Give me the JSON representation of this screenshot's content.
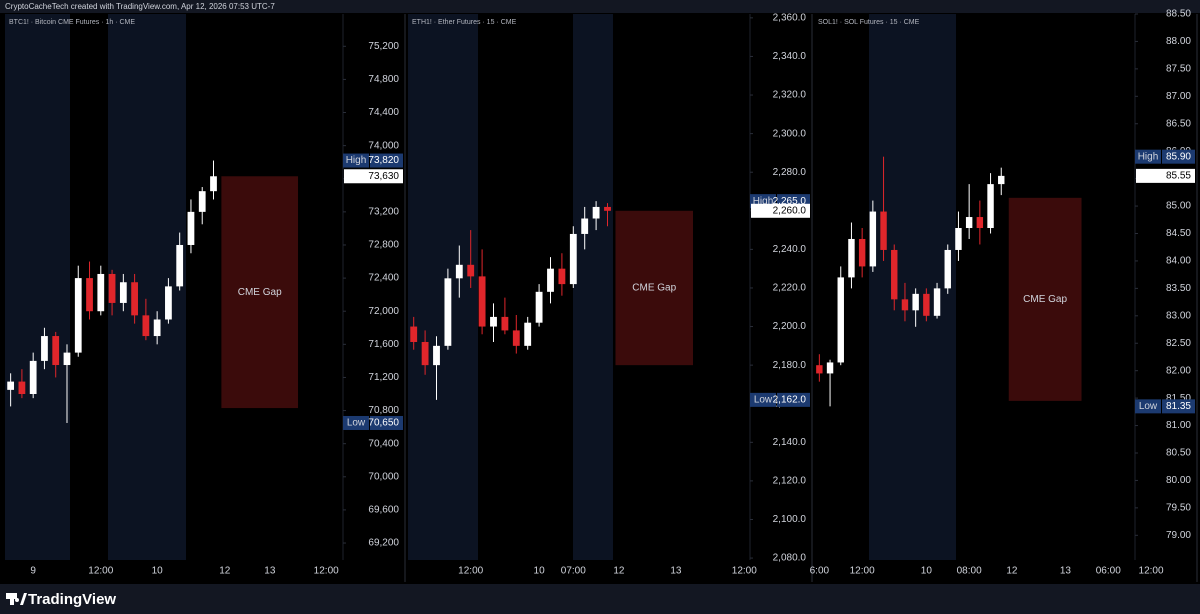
{
  "header": "CryptoCacheTech created with TradingView.com, Apr 12, 2026 07:53 UTC-7",
  "footer": "TradingView",
  "chart_data": [
    {
      "type": "candlestick",
      "title": "BTC1! · Bitcoin CME Futures · 1h · CME",
      "up_color": "#ffffff",
      "down_color": "#e0262b",
      "categories": [
        null,
        null,
        "9",
        null,
        null,
        null,
        null,
        null,
        "12:00",
        null,
        null,
        null,
        null,
        "10",
        null,
        null,
        null,
        null,
        null,
        "12",
        null,
        null,
        null,
        "13",
        null,
        null,
        null,
        null,
        "12:00",
        null
      ],
      "open": [
        71050,
        71150,
        71000,
        71400,
        71700,
        71350,
        71500,
        72400,
        72000,
        72450,
        72100,
        72350,
        71950,
        71700,
        71900,
        72300,
        72800,
        73200,
        73450,
        null,
        null,
        null,
        null,
        null,
        null,
        null,
        null,
        null,
        null,
        null
      ],
      "high": [
        71250,
        71300,
        71500,
        71800,
        71750,
        71600,
        72550,
        72600,
        72550,
        72500,
        72450,
        72450,
        72150,
        72000,
        72400,
        72950,
        73350,
        73500,
        73820,
        null,
        null,
        null,
        null,
        null,
        null,
        null,
        null,
        null,
        null,
        null
      ],
      "low": [
        70850,
        70950,
        70950,
        71300,
        71200,
        70650,
        71450,
        71900,
        71950,
        71950,
        72000,
        71850,
        71650,
        71600,
        71850,
        72250,
        72700,
        73050,
        73350,
        null,
        null,
        null,
        null,
        null,
        null,
        null,
        null,
        null,
        null,
        null
      ],
      "close": [
        71150,
        71000,
        71400,
        71700,
        71350,
        71500,
        72400,
        72000,
        72450,
        72100,
        72350,
        71950,
        71700,
        71900,
        72300,
        72800,
        73200,
        73450,
        73630,
        null,
        null,
        null,
        null,
        null,
        null,
        null,
        null,
        null,
        null,
        null
      ],
      "gap": {
        "label": "CME Gap",
        "high": 73630,
        "low": 70830,
        "color": "#3b0b0b"
      },
      "price_tags": [
        {
          "label": "High",
          "value": 73820,
          "value_label": "73,820"
        },
        {
          "value": 73630,
          "value_label": "73,630"
        },
        {
          "label": "Low",
          "value": 70650,
          "value_label": "70,650"
        }
      ],
      "ylim": [
        68995,
        75590
      ],
      "yticks": [
        {
          "value": 69200,
          "label": "69,200"
        },
        {
          "value": 69600,
          "label": "69,600"
        },
        {
          "value": 70000,
          "label": "70,000"
        },
        {
          "value": 70400,
          "label": "70,400"
        },
        {
          "value": 70800,
          "label": "70,800"
        },
        {
          "value": 71200,
          "label": "71,200"
        },
        {
          "value": 71600,
          "label": "71,600"
        },
        {
          "value": 72000,
          "label": "72,000"
        },
        {
          "value": 72400,
          "label": "72,400"
        },
        {
          "value": 72800,
          "label": "72,800"
        },
        {
          "value": 73200,
          "label": "73,200"
        },
        {
          "value": 73600,
          "label": "73,600"
        },
        {
          "value": 74000,
          "label": "74,000"
        },
        {
          "value": 74400,
          "label": "74,400"
        },
        {
          "value": 74800,
          "label": "74,800"
        },
        {
          "value": 75200,
          "label": "75,200"
        }
      ]
    },
    {
      "type": "candlestick",
      "title": "ETH1! · Ether Futures · 15 · CME",
      "up_color": "#ffffff",
      "down_color": "#e0262b",
      "categories": [
        null,
        null,
        null,
        null,
        null,
        "12:00",
        null,
        null,
        null,
        null,
        null,
        "10",
        null,
        null,
        "07:00",
        null,
        null,
        null,
        "12",
        null,
        null,
        null,
        null,
        "13",
        null,
        null,
        null,
        null,
        null,
        "12:00"
      ],
      "open": [
        2200,
        2192,
        2180,
        2190,
        2225,
        2232,
        2226,
        2200,
        2205,
        2198,
        2190,
        2202,
        2218,
        2230,
        2222,
        2248,
        2256,
        2262,
        null,
        null,
        null,
        null,
        null,
        null,
        null,
        null,
        null,
        null,
        null,
        null
      ],
      "high": [
        2205,
        2198,
        2195,
        2230,
        2242,
        2250,
        2240,
        2212,
        2215,
        2206,
        2205,
        2222,
        2236,
        2238,
        2252,
        2262,
        2265,
        2264,
        null,
        null,
        null,
        null,
        null,
        null,
        null,
        null,
        null,
        null,
        null,
        null
      ],
      "low": [
        2188,
        2175,
        2162,
        2188,
        2215,
        2220,
        2196,
        2192,
        2196,
        2186,
        2188,
        2200,
        2212,
        2216,
        2220,
        2240,
        2250,
        2252,
        null,
        null,
        null,
        null,
        null,
        null,
        null,
        null,
        null,
        null,
        null,
        null
      ],
      "close": [
        2192,
        2180,
        2190,
        2225,
        2232,
        2226,
        2200,
        2205,
        2198,
        2190,
        2202,
        2218,
        2230,
        2222,
        2248,
        2256,
        2262,
        2260,
        null,
        null,
        null,
        null,
        null,
        null,
        null,
        null,
        null,
        null,
        null,
        null
      ],
      "gap": {
        "label": "CME Gap",
        "high": 2260,
        "low": 2180,
        "color": "#3b0b0b"
      },
      "price_tags": [
        {
          "label": "High",
          "value": 2265,
          "value_label": "2,265.0"
        },
        {
          "value": 2260,
          "value_label": "2,260.0"
        },
        {
          "label": "Low",
          "value": 2162,
          "value_label": "2,162.0"
        }
      ],
      "ylim": [
        2079,
        2362
      ],
      "yticks": [
        {
          "value": 2080,
          "label": "2,080.0"
        },
        {
          "value": 2100,
          "label": "2,100.0"
        },
        {
          "value": 2120,
          "label": "2,120.0"
        },
        {
          "value": 2140,
          "label": "2,140.0"
        },
        {
          "value": 2160,
          "label": "2,160.0"
        },
        {
          "value": 2180,
          "label": "2,180.0"
        },
        {
          "value": 2200,
          "label": "2,200.0"
        },
        {
          "value": 2220,
          "label": "2,220.0"
        },
        {
          "value": 2240,
          "label": "2,240.0"
        },
        {
          "value": 2260,
          "label": "2,260.0"
        },
        {
          "value": 2280,
          "label": "2,280.0"
        },
        {
          "value": 2300,
          "label": "2,300.0"
        },
        {
          "value": 2320,
          "label": "2,320.0"
        },
        {
          "value": 2340,
          "label": "2,340.0"
        },
        {
          "value": 2360,
          "label": "2,360.0"
        }
      ]
    },
    {
      "type": "candlestick",
      "title": "SOL1! · SOL Futures · 15 · CME",
      "up_color": "#ffffff",
      "down_color": "#e0262b",
      "categories": [
        "6:00",
        null,
        null,
        null,
        "12:00",
        null,
        null,
        null,
        null,
        null,
        "10",
        null,
        null,
        null,
        "08:00",
        null,
        null,
        null,
        "12",
        null,
        null,
        null,
        null,
        "13",
        null,
        null,
        null,
        "06:00",
        null,
        null,
        null,
        "12:00"
      ],
      "open": [
        82.1,
        81.95,
        82.15,
        83.7,
        84.4,
        83.9,
        84.9,
        84.2,
        83.3,
        83.1,
        83.4,
        83.0,
        83.5,
        84.2,
        84.6,
        84.8,
        84.6,
        85.4,
        null,
        null,
        null,
        null,
        null,
        null,
        null,
        null,
        null,
        null,
        null,
        null,
        null,
        null
      ],
      "high": [
        82.3,
        82.2,
        83.9,
        84.7,
        84.6,
        85.1,
        85.9,
        84.3,
        83.6,
        83.5,
        83.5,
        83.6,
        84.3,
        84.9,
        85.4,
        85.1,
        85.6,
        85.7,
        null,
        null,
        null,
        null,
        null,
        null,
        null,
        null,
        null,
        null,
        null,
        null,
        null,
        null
      ],
      "low": [
        81.8,
        81.35,
        82.1,
        83.5,
        83.7,
        83.8,
        84.0,
        83.1,
        82.9,
        82.8,
        82.9,
        82.95,
        83.4,
        84.0,
        84.4,
        84.3,
        84.5,
        85.2,
        null,
        null,
        null,
        null,
        null,
        null,
        null,
        null,
        null,
        null,
        null,
        null,
        null,
        null
      ],
      "close": [
        81.95,
        82.15,
        83.7,
        84.4,
        83.9,
        84.9,
        84.2,
        83.3,
        83.1,
        83.4,
        83.0,
        83.5,
        84.2,
        84.6,
        84.8,
        84.6,
        85.4,
        85.55,
        null,
        null,
        null,
        null,
        null,
        null,
        null,
        null,
        null,
        null,
        null,
        null,
        null,
        null
      ],
      "gap": {
        "label": "CME Gap",
        "high": 85.15,
        "low": 81.45,
        "color": "#3b0b0b"
      },
      "price_tags": [
        {
          "label": "High",
          "value": 85.9,
          "value_label": "85.90"
        },
        {
          "value": 85.55,
          "value_label": "85.55"
        },
        {
          "label": "Low",
          "value": 81.35,
          "value_label": "81.35"
        }
      ],
      "ylim": [
        78.55,
        88.5
      ],
      "yticks": [
        {
          "value": 79,
          "label": "79.00"
        },
        {
          "value": 79.5,
          "label": "79.50"
        },
        {
          "value": 80,
          "label": "80.00"
        },
        {
          "value": 80.5,
          "label": "80.50"
        },
        {
          "value": 81,
          "label": "81.00"
        },
        {
          "value": 81.5,
          "label": "81.50"
        },
        {
          "value": 82,
          "label": "82.00"
        },
        {
          "value": 82.5,
          "label": "82.50"
        },
        {
          "value": 83,
          "label": "83.00"
        },
        {
          "value": 83.5,
          "label": "83.50"
        },
        {
          "value": 84,
          "label": "84.00"
        },
        {
          "value": 84.5,
          "label": "84.50"
        },
        {
          "value": 85,
          "label": "85.00"
        },
        {
          "value": 85.5,
          "label": "85.50"
        },
        {
          "value": 86,
          "label": "86.00"
        },
        {
          "value": 86.5,
          "label": "86.50"
        },
        {
          "value": 87,
          "label": "87.00"
        },
        {
          "value": 87.5,
          "label": "87.50"
        },
        {
          "value": 88,
          "label": "88.00"
        },
        {
          "value": 88.5,
          "label": "88.50"
        }
      ]
    }
  ]
}
